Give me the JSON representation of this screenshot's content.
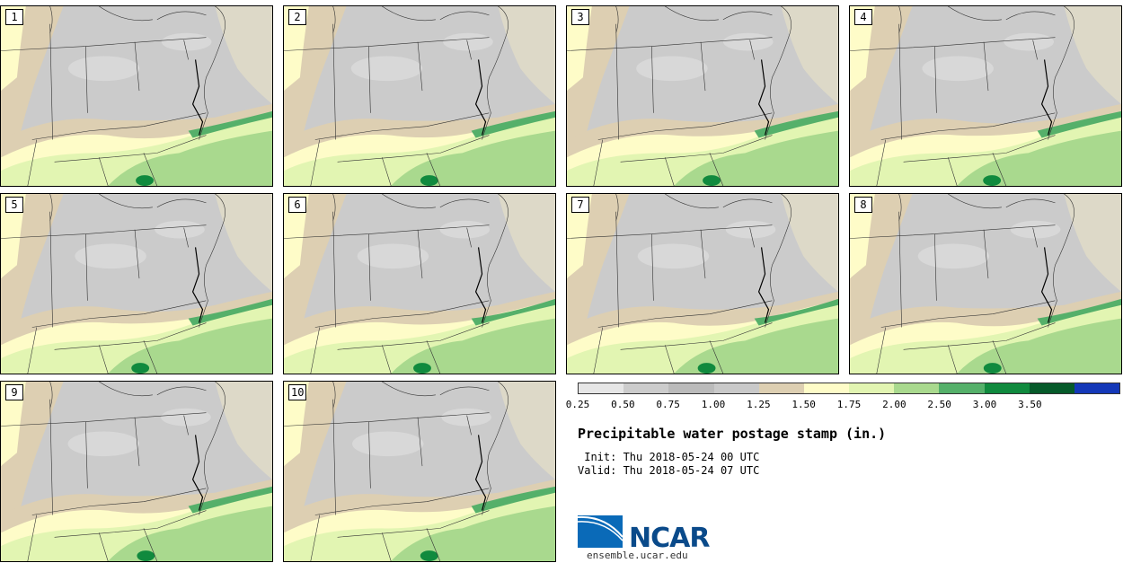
{
  "panels": [
    {
      "label": "1"
    },
    {
      "label": "2"
    },
    {
      "label": "3"
    },
    {
      "label": "4"
    },
    {
      "label": "5"
    },
    {
      "label": "6"
    },
    {
      "label": "7"
    },
    {
      "label": "8"
    },
    {
      "label": "9"
    },
    {
      "label": "10"
    }
  ],
  "colorbar": {
    "colors": [
      "#e6e6e6",
      "#cccccc",
      "#bbbbbb",
      "#c9c9c9",
      "#ddcfb2",
      "#fefcc8",
      "#e2f5b2",
      "#a9d98e",
      "#55b06a",
      "#108a3e",
      "#065a2a",
      "#1438b8"
    ],
    "ticks": [
      "0.25",
      "0.50",
      "0.75",
      "1.00",
      "1.25",
      "1.50",
      "1.75",
      "2.00",
      "2.50",
      "3.00",
      "3.50"
    ]
  },
  "title": "Precipitable water postage stamp (in.)",
  "init_line": " Init: Thu 2018-05-24 00 UTC",
  "valid_line": "Valid: Thu 2018-05-24 07 UTC",
  "logo": {
    "text": "NCAR",
    "site": "ensemble.ucar.edu"
  }
}
